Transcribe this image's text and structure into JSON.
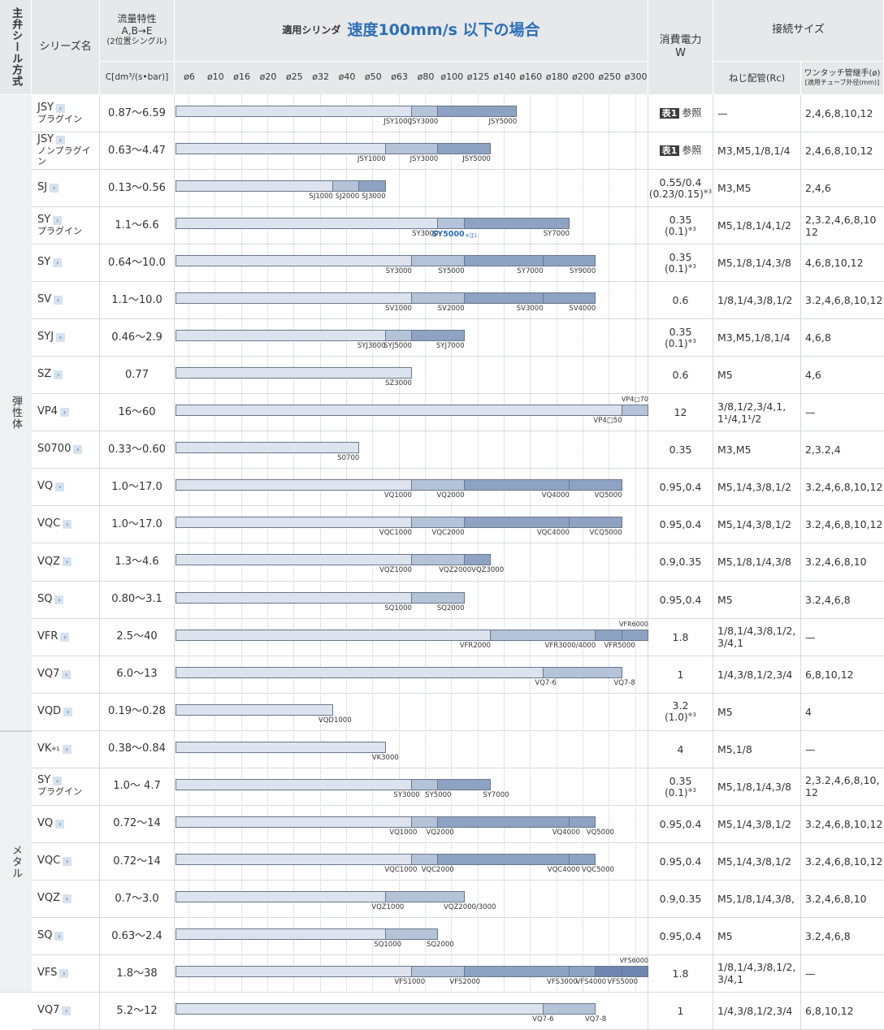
{
  "headers": {
    "seal_method": "主弁シール方式",
    "series": "シリーズ名",
    "flow_line1": "流量特性",
    "flow_line2": "A,B→E",
    "flow_line3": "(2位置シングル)",
    "flow_unit": "C[dm³/(s•bar)]",
    "cyl_label": "適用シリンダ",
    "cyl_speed": "速度100mm/s 以下の場合",
    "power_line1": "消費電力",
    "power_line2": "W",
    "conn": "接続サイズ",
    "thread": "ねじ配管(Rc)",
    "onetouch_line1": "ワンタッチ管継手(ø)",
    "onetouch_line2": "[適用チューブ外径(mm)]"
  },
  "bore_ticks": [
    "ø6",
    "ø10",
    "ø16",
    "ø20",
    "ø25",
    "ø32",
    "ø40",
    "ø50",
    "ø63",
    "ø80",
    "ø100",
    "ø125",
    "ø140",
    "ø160",
    "ø180",
    "ø200",
    "ø250",
    "ø300"
  ],
  "groups": [
    {
      "label": "弾性体",
      "rows": 17
    },
    {
      "label": "メタル",
      "rows": 7
    }
  ],
  "colors": {
    "seg1": "#dde3ee",
    "seg2": "#b5c3d8",
    "seg3": "#8ea2c3",
    "seg4": "#6f86b0",
    "blue": "#2c6fb6"
  },
  "rows": [
    {
      "name": "JSY",
      "sub": "プラグイン",
      "flow": "0.87〜6.59",
      "power": "参照",
      "power_tag": "表1",
      "thread": "—",
      "onetouch": "2,4,6,8,10,12",
      "segs": [
        [
          0,
          9,
          1
        ],
        [
          9,
          10,
          2
        ],
        [
          10,
          13,
          3
        ]
      ],
      "labels": [
        [
          "JSY1000",
          9
        ],
        [
          "JSY3000",
          10
        ],
        [
          "JSY5000",
          13
        ]
      ]
    },
    {
      "name": "JSY",
      "sub": "ノンプラグイン",
      "flow": "0.63〜4.47",
      "power": "参照",
      "power_tag": "表1",
      "thread": "M3,M5,1/8,1/4",
      "onetouch": "2,4,6,8,10,12",
      "segs": [
        [
          0,
          8,
          1
        ],
        [
          8,
          10,
          2
        ],
        [
          10,
          12,
          3
        ]
      ],
      "labels": [
        [
          "JSY1000",
          8
        ],
        [
          "JSY3000",
          10
        ],
        [
          "JSY5000",
          12
        ]
      ]
    },
    {
      "name": "SJ",
      "sub": "",
      "flow": "0.13〜0.56",
      "power": "0.55/0.4",
      "power2": "(0.23/0.15)",
      "note": "※3",
      "thread": "M3,M5",
      "onetouch": "2,4,6",
      "segs": [
        [
          0,
          6,
          1
        ],
        [
          6,
          7,
          2
        ],
        [
          7,
          8,
          3
        ]
      ],
      "labels": [
        [
          "SJ1000",
          6
        ],
        [
          "SJ2000",
          7
        ],
        [
          "SJ3000",
          8
        ]
      ]
    },
    {
      "name": "SY",
      "sub": "プラグイン",
      "flow": "1.1〜6.6",
      "power": "0.35",
      "power2": "(0.1)",
      "note": "※3",
      "thread": "M5,1/8,1/4,1/2",
      "onetouch": "2,3.2,4,6,8,10",
      "onetouch2": "12",
      "segs": [
        [
          0,
          10,
          1
        ],
        [
          10,
          11,
          2
        ],
        [
          11,
          15,
          3
        ]
      ],
      "labels": [
        [
          "SY3000",
          10
        ],
        [
          "SY5000",
          11,
          "blue"
        ],
        [
          "SY7000",
          15
        ]
      ],
      "bluenote": "※注1"
    },
    {
      "name": "SY",
      "sub": "",
      "flow": "0.64〜10.0",
      "power": "0.35",
      "power2": "(0.1)",
      "note": "※3",
      "thread": "M5,1/8,1/4,3/8",
      "onetouch": "4,6,8,10,12",
      "segs": [
        [
          0,
          9,
          1
        ],
        [
          9,
          11,
          2
        ],
        [
          11,
          14,
          3
        ],
        [
          14,
          16,
          4
        ]
      ],
      "labels": [
        [
          "SY3000",
          9
        ],
        [
          "SY5000",
          11
        ],
        [
          "SY7000",
          14
        ],
        [
          "SY9000",
          16
        ]
      ]
    },
    {
      "name": "SV",
      "sub": "",
      "flow": "1.1〜10.0",
      "power": "0.6",
      "thread": "1/8,1/4,3/8,1/2",
      "onetouch": "3.2,4,6,8,10,12",
      "segs": [
        [
          0,
          9,
          1
        ],
        [
          9,
          11,
          2
        ],
        [
          11,
          14,
          3
        ],
        [
          14,
          16,
          4
        ]
      ],
      "labels": [
        [
          "SV1000",
          9
        ],
        [
          "SV2000",
          11
        ],
        [
          "SV3000",
          14
        ],
        [
          "SV4000",
          16
        ]
      ]
    },
    {
      "name": "SYJ",
      "sub": "",
      "flow": "0.46〜2.9",
      "power": "0.35",
      "power2": "(0.1)",
      "note": "※3",
      "thread": "M3,M5,1/8,1/4",
      "onetouch": "4,6,8",
      "segs": [
        [
          0,
          8,
          1
        ],
        [
          8,
          9,
          2
        ],
        [
          9,
          11,
          3
        ]
      ],
      "labels": [
        [
          "SYJ3000",
          8
        ],
        [
          "SYJ5000",
          9
        ],
        [
          "SYJ7000",
          11
        ]
      ]
    },
    {
      "name": "SZ",
      "sub": "",
      "flow": "0.77",
      "power": "0.6",
      "thread": "M5",
      "onetouch": "4,6",
      "segs": [
        [
          0,
          9,
          1
        ]
      ],
      "labels": [
        [
          "SZ3000",
          9
        ]
      ]
    },
    {
      "name": "VP4",
      "sub": "",
      "flow": "16〜60",
      "power": "12",
      "thread": "3/8,1/2,3/4,1,",
      "thread2": "1¹/4,1¹/2",
      "onetouch": "—",
      "segs": [
        [
          0,
          17,
          1
        ],
        [
          17,
          18,
          2
        ]
      ],
      "labels": [
        [
          "VP4□50",
          17
        ]
      ],
      "toplabels": [
        [
          "VP4□70",
          18
        ]
      ]
    },
    {
      "name": "S0700",
      "sub": "",
      "flow": "0.33〜0.60",
      "power": "0.35",
      "thread": "M3,M5",
      "onetouch": "2,3.2,4",
      "segs": [
        [
          0,
          7,
          1
        ]
      ],
      "labels": [
        [
          "S0700",
          7
        ]
      ]
    },
    {
      "name": "VQ",
      "sub": "",
      "flow": "1.0〜17.0",
      "power": "0.95,0.4",
      "thread": "M5,1/4,3/8,1/2",
      "onetouch": "3.2,4,6,8,10,12",
      "segs": [
        [
          0,
          9,
          1
        ],
        [
          9,
          11,
          2
        ],
        [
          11,
          15,
          3
        ],
        [
          15,
          17,
          4
        ]
      ],
      "labels": [
        [
          "VQ1000",
          9
        ],
        [
          "VQ2000",
          11
        ],
        [
          "VQ4000",
          15
        ],
        [
          "VQ5000",
          17
        ]
      ]
    },
    {
      "name": "VQC",
      "sub": "",
      "flow": "1.0〜17.0",
      "power": "0.95,0.4",
      "thread": "M5,1/4,3/8,1/2",
      "onetouch": "3.2,4,6,8,10,12",
      "segs": [
        [
          0,
          9,
          1
        ],
        [
          9,
          11,
          2
        ],
        [
          11,
          15,
          3
        ],
        [
          15,
          17,
          4
        ]
      ],
      "labels": [
        [
          "VQC1000",
          9
        ],
        [
          "VQC2000",
          11
        ],
        [
          "VQC4000",
          15
        ],
        [
          "VCQ5000",
          17
        ]
      ]
    },
    {
      "name": "VQZ",
      "sub": "",
      "flow": "1.3〜4.6",
      "power": "0.9,0.35",
      "thread": "M5,1/8,1/4,3/8",
      "onetouch": "3.2,4,6,8,10",
      "segs": [
        [
          0,
          9,
          1
        ],
        [
          9,
          11,
          2
        ],
        [
          11,
          12,
          3
        ]
      ],
      "labels": [
        [
          "VQZ1000",
          9
        ],
        [
          "VQZ2000VQZ3000",
          12.5
        ]
      ]
    },
    {
      "name": "SQ",
      "sub": "",
      "flow": "0.80〜3.1",
      "power": "0.95,0.4",
      "thread": "M5",
      "onetouch": "3.2,4,6,8",
      "segs": [
        [
          0,
          9,
          1
        ],
        [
          9,
          11,
          2
        ]
      ],
      "labels": [
        [
          "SQ1000",
          9
        ],
        [
          "SQ2000",
          11
        ]
      ]
    },
    {
      "name": "VFR",
      "sub": "",
      "flow": "2.5〜40",
      "power": "1.8",
      "thread": "1/8,1/4,3/8,1/2,",
      "thread2": "3/4,1",
      "onetouch": "—",
      "segs": [
        [
          0,
          12,
          1
        ],
        [
          12,
          16,
          2
        ],
        [
          16,
          17,
          3
        ],
        [
          17,
          18,
          4
        ]
      ],
      "labels": [
        [
          "VFR2000",
          12
        ],
        [
          "VFR3000/4000",
          16
        ],
        [
          "VFR5000",
          17.5
        ]
      ],
      "toplabels": [
        [
          "VFR6000",
          18
        ]
      ]
    },
    {
      "name": "VQ7",
      "sub": "",
      "flow": "6.0〜13",
      "power": "1",
      "thread": "1/4,3/8,1/2,3/4",
      "onetouch": "6,8,10,12",
      "segs": [
        [
          0,
          14,
          1
        ],
        [
          14,
          17,
          2
        ]
      ],
      "labels": [
        [
          "VQ7-6",
          14.5
        ],
        [
          "VQ7-8",
          17.5
        ]
      ]
    },
    {
      "name": "VQD",
      "sub": "",
      "flow": "0.19〜0.28",
      "power": "3.2",
      "power2": "(1.0)",
      "note": "※3",
      "thread": "M5",
      "onetouch": "4",
      "segs": [
        [
          0,
          6,
          1
        ]
      ],
      "labels": [
        [
          "VQD1000",
          6.7
        ]
      ]
    },
    {
      "name": "VK",
      "sup": "※1",
      "sub": "",
      "flow": "0.38〜0.84",
      "power": "4",
      "thread": "M5,1/8",
      "onetouch": "—",
      "segs": [
        [
          0,
          8,
          1
        ]
      ],
      "labels": [
        [
          "VK3000",
          8.5
        ]
      ]
    },
    {
      "name": "SY",
      "sub": "プラグイン",
      "flow": "1.0〜 4.7",
      "power": "0.35",
      "power2": "(0.1)",
      "note": "※3",
      "thread": "M5,1/8,1/4,3/8",
      "onetouch": "2,3.2,4,6,8,10,",
      "onetouch2": "12",
      "segs": [
        [
          0,
          9,
          1
        ],
        [
          9,
          10,
          2
        ],
        [
          10,
          12,
          3
        ]
      ],
      "labels": [
        [
          "SY3000",
          9.3
        ],
        [
          "SY5000",
          10.5
        ],
        [
          "SY7000",
          12.7
        ]
      ]
    },
    {
      "name": "VQ",
      "sub": "",
      "flow": "0.72〜14",
      "power": "0.95,0.4",
      "thread": "M5,1/4,3/8,1/2",
      "onetouch": "3.2,4,6,8,10,12",
      "segs": [
        [
          0,
          9,
          1
        ],
        [
          9,
          10,
          2
        ],
        [
          10,
          15,
          3
        ],
        [
          15,
          16,
          4
        ]
      ],
      "labels": [
        [
          "VQ1000",
          9.2
        ],
        [
          "VQ2000",
          10.6
        ],
        [
          "VQ4000",
          15.4
        ],
        [
          "VQ5000",
          16.7
        ]
      ]
    },
    {
      "name": "VQC",
      "sub": "",
      "flow": "0.72〜14",
      "power": "0.95,0.4",
      "thread": "M5,1/4,3/8,1/2",
      "onetouch": "3.2,4,6,8,10,12",
      "segs": [
        [
          0,
          9,
          1
        ],
        [
          9,
          10,
          2
        ],
        [
          10,
          15,
          3
        ],
        [
          15,
          16,
          4
        ]
      ],
      "labels": [
        [
          "VQC1000",
          9.2
        ],
        [
          "VQC2000",
          10.6
        ],
        [
          "VQC4000",
          15.4
        ],
        [
          "VQC5000",
          16.7
        ]
      ]
    },
    {
      "name": "VQZ",
      "sub": "",
      "flow": "0.7〜3.0",
      "power": "0.9,0.35",
      "thread": "M5,1/8,1/4,3/8,",
      "onetouch": "3.2,4,6,8,10",
      "segs": [
        [
          0,
          8,
          1
        ],
        [
          8,
          11,
          2
        ]
      ],
      "labels": [
        [
          "VQZ1000",
          8.7
        ],
        [
          "VQZ2000/3000",
          12.2
        ]
      ]
    },
    {
      "name": "SQ",
      "sub": "",
      "flow": "0.63〜2.4",
      "power": "0.95,0.4",
      "thread": "M5",
      "onetouch": "3.2,4,6,8",
      "segs": [
        [
          0,
          8,
          1
        ],
        [
          8,
          10,
          2
        ]
      ],
      "labels": [
        [
          "SQ1000",
          8.6
        ],
        [
          "SQ2000",
          10.6
        ]
      ]
    },
    {
      "name": "VFS",
      "sub": "",
      "flow": "1.8〜38",
      "power": "1.8",
      "thread": "1/8,1/4,3/8,1/2,",
      "thread2": "3/4,1",
      "onetouch": "—",
      "segs": [
        [
          0,
          9,
          1
        ],
        [
          9,
          11,
          2
        ],
        [
          11,
          15,
          3
        ],
        [
          15,
          16,
          4
        ],
        [
          16,
          17,
          5
        ],
        [
          17,
          18,
          6
        ]
      ],
      "labels": [
        [
          "VFS1000",
          9.5
        ],
        [
          "VFS2000",
          11.6
        ],
        [
          "VFS3000",
          15.3
        ],
        [
          "VFS4000",
          16.4
        ],
        [
          "VFS5000",
          17.6
        ]
      ],
      "toplabels": [
        [
          "VFS6000",
          18
        ]
      ]
    },
    {
      "name": "VQ7",
      "sub": "",
      "flow": "5.2〜12",
      "power": "1",
      "thread": "1/4,3/8,1/2,3/4",
      "onetouch": "6,8,10,12",
      "segs": [
        [
          0,
          14,
          1
        ],
        [
          14,
          16,
          2
        ]
      ],
      "labels": [
        [
          "VQ7-6",
          14.4
        ],
        [
          "VQ7-8",
          16.4
        ]
      ]
    }
  ]
}
